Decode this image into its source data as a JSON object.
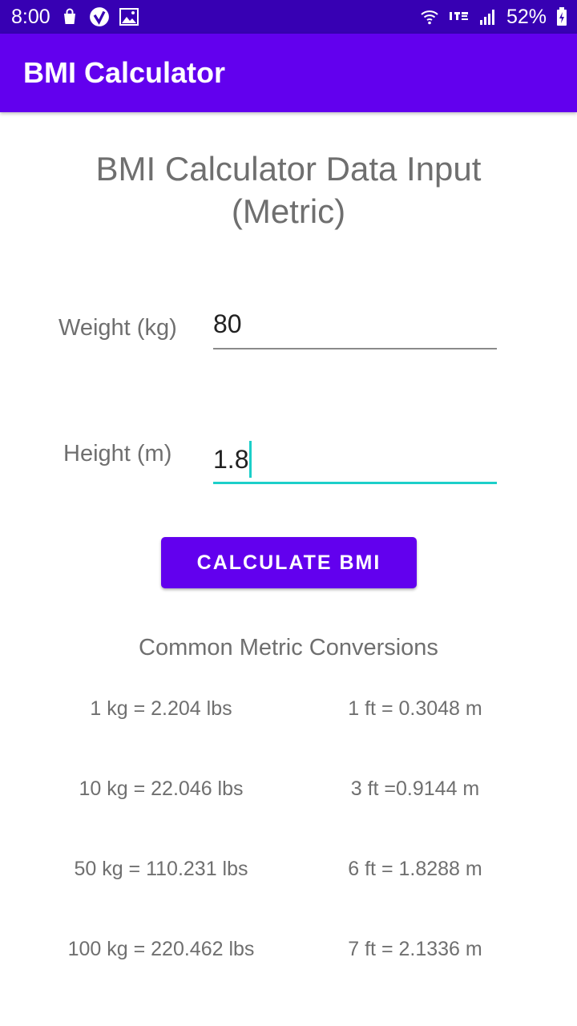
{
  "status_bar": {
    "time": "8:00",
    "battery": "52%",
    "left_icons": [
      "shopping-bag-icon",
      "check-badge-icon",
      "image-icon"
    ],
    "right_icons": [
      "wifi-icon",
      "lte-icon",
      "signal-icon",
      "battery-icon"
    ]
  },
  "app_bar": {
    "title": "BMI Calculator"
  },
  "form": {
    "title": "BMI Calculator Data Input (Metric)",
    "weight": {
      "label": "Weight (kg)",
      "value": "80"
    },
    "height": {
      "label": "Height (m)",
      "value": "1.8"
    },
    "button_label": "CALCULATE BMI"
  },
  "conversions": {
    "title": "Common Metric Conversions",
    "rows": [
      {
        "weight": "1 kg = 2.204 lbs",
        "length": "1 ft = 0.3048 m"
      },
      {
        "weight": "10 kg = 22.046 lbs",
        "length": "3 ft =0.9144 m"
      },
      {
        "weight": "50 kg = 110.231 lbs",
        "length": "6 ft = 1.8288 m"
      },
      {
        "weight": "100 kg = 220.462 lbs",
        "length": "7 ft = 2.1336 m"
      }
    ]
  },
  "colors": {
    "status_bar": "#3700b3",
    "primary": "#6200ee",
    "accent": "#1ccfc9",
    "text_secondary": "#6f6f6f"
  }
}
